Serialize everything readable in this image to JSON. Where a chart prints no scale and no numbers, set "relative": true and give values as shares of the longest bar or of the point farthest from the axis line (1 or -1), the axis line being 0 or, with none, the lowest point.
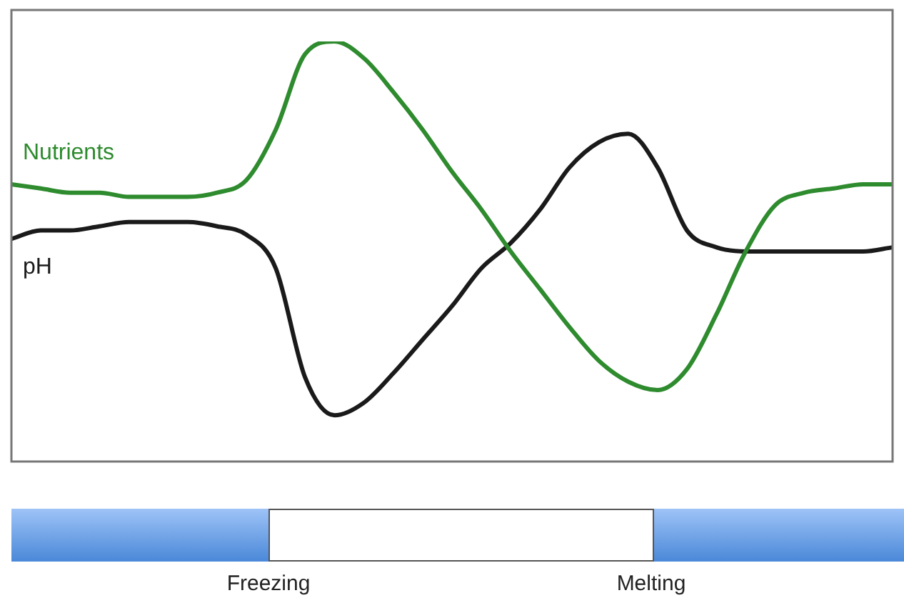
{
  "chart_data": {
    "type": "line",
    "relative": true,
    "categories": [
      null,
      null,
      null,
      null,
      null,
      null,
      null,
      null,
      null,
      null,
      null,
      null,
      null,
      null,
      null,
      null,
      null,
      null,
      null,
      null,
      null,
      null,
      null,
      null,
      null,
      null,
      null,
      null,
      null,
      null,
      null
    ],
    "legend": false,
    "marker": "none",
    "line_style": "solid",
    "series": [
      {
        "name": "Nutrients",
        "color": "#2e8b2e",
        "values": [
          0.66,
          0.65,
          0.64,
          0.64,
          0.63,
          0.63,
          0.63,
          0.64,
          0.67,
          0.79,
          0.97,
          1.0,
          0.96,
          0.88,
          0.79,
          0.69,
          0.6,
          0.5,
          0.41,
          0.32,
          0.24,
          0.19,
          0.17,
          0.22,
          0.35,
          0.5,
          0.61,
          0.64,
          0.65,
          0.66,
          0.66
        ]
      },
      {
        "name": "pH",
        "color": "#1a1a1a",
        "values": [
          0.53,
          0.55,
          0.55,
          0.56,
          0.57,
          0.57,
          0.57,
          0.56,
          0.54,
          0.46,
          0.2,
          0.11,
          0.14,
          0.21,
          0.29,
          0.37,
          0.46,
          0.52,
          0.6,
          0.7,
          0.76,
          0.78,
          0.7,
          0.55,
          0.51,
          0.5,
          0.5,
          0.5,
          0.5,
          0.5,
          0.51
        ]
      }
    ],
    "annotations": [
      "Freezing",
      "Melting"
    ]
  }
}
